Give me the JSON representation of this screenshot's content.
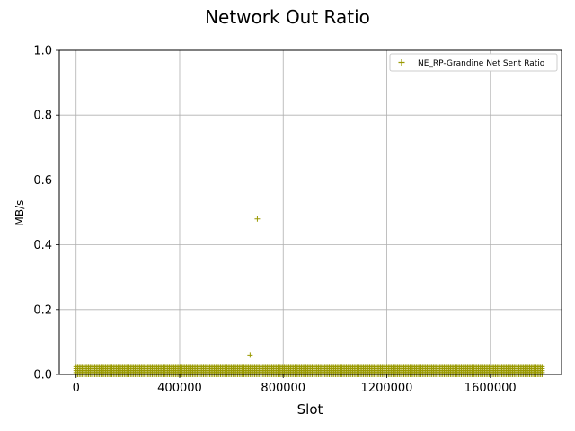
{
  "chart_data": {
    "type": "scatter",
    "title": "Network Out Ratio",
    "xlabel": "Slot",
    "ylabel": "MB/s",
    "xlim": [
      -65000,
      1875000
    ],
    "ylim": [
      0,
      1.0
    ],
    "x_ticks": [
      0,
      400000,
      800000,
      1200000,
      1600000
    ],
    "x_tick_labels": [
      "0",
      "400000",
      "800000",
      "1200000",
      "1600000"
    ],
    "y_ticks": [
      0.0,
      0.2,
      0.4,
      0.6,
      0.8,
      1.0
    ],
    "y_tick_labels": [
      "0.0",
      "0.2",
      "0.4",
      "0.6",
      "0.8",
      "1.0"
    ],
    "grid": true,
    "legend_position": "top-right",
    "series": [
      {
        "name": "NE_RP-Grandine Net Sent Ratio",
        "color": "#999900",
        "marker": "plus",
        "x_range": [
          0,
          1800000
        ],
        "baseline_values": [
          0.0,
          0.006,
          0.012,
          0.018,
          0.024
        ],
        "outliers": [
          {
            "x": 700000,
            "y": 0.48
          },
          {
            "x": 672000,
            "y": 0.06
          }
        ]
      }
    ]
  }
}
